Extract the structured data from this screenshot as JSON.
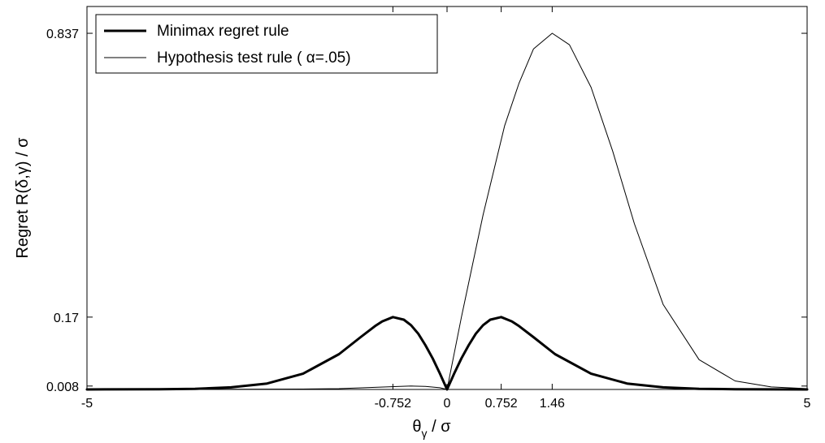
{
  "chart_data": {
    "type": "line",
    "title": "",
    "xlabel": "θγ / σ",
    "ylabel": "Regret R(δ,γ) / σ",
    "xlim": [
      -5,
      5
    ],
    "ylim": [
      0,
      0.9
    ],
    "xticks": [
      -5,
      -0.752,
      0,
      0.752,
      1.46,
      5
    ],
    "xtick_labels": [
      "-5",
      "-0.752",
      "0",
      "0.752",
      "1.46",
      "5"
    ],
    "yticks": [
      0.008,
      0.17,
      0.837
    ],
    "ytick_labels": [
      "0.008",
      "0.17",
      "0.837"
    ],
    "grid": false,
    "legend_position": "top-left",
    "series": [
      {
        "name": "Minimax regret rule",
        "color": "#000000",
        "style": "thick",
        "x": [
          -5,
          -4,
          -3.5,
          -3,
          -2.5,
          -2,
          -1.5,
          -1.2,
          -1,
          -0.9,
          -0.752,
          -0.6,
          -0.5,
          -0.4,
          -0.3,
          -0.2,
          -0.1,
          0,
          0.1,
          0.2,
          0.3,
          0.4,
          0.5,
          0.6,
          0.752,
          0.9,
          1,
          1.2,
          1.5,
          2,
          2.5,
          3,
          3.5,
          4,
          5
        ],
        "y": [
          0.0,
          0.0005,
          0.0015,
          0.005,
          0.014,
          0.037,
          0.083,
          0.123,
          0.149,
          0.16,
          0.17,
          0.164,
          0.151,
          0.131,
          0.104,
          0.073,
          0.038,
          0.0,
          0.038,
          0.073,
          0.104,
          0.131,
          0.151,
          0.164,
          0.17,
          0.16,
          0.149,
          0.123,
          0.083,
          0.037,
          0.014,
          0.005,
          0.0015,
          0.0005,
          0.0
        ]
      },
      {
        "name": "Hypothesis test rule ( α=.05)",
        "color": "#000000",
        "style": "thin",
        "x": [
          -5,
          -3,
          -2,
          -1.5,
          -1,
          -0.5,
          -0.3,
          -0.1,
          0,
          0.2,
          0.5,
          0.8,
          1,
          1.2,
          1.46,
          1.7,
          2,
          2.3,
          2.6,
          3,
          3.5,
          4,
          4.5,
          5
        ],
        "y": [
          0.0,
          0.0005,
          0.001,
          0.002,
          0.005,
          0.008,
          0.007,
          0.004,
          0.0,
          0.17,
          0.41,
          0.62,
          0.72,
          0.8,
          0.837,
          0.81,
          0.71,
          0.56,
          0.39,
          0.2,
          0.07,
          0.02,
          0.006,
          0.002
        ]
      }
    ]
  }
}
